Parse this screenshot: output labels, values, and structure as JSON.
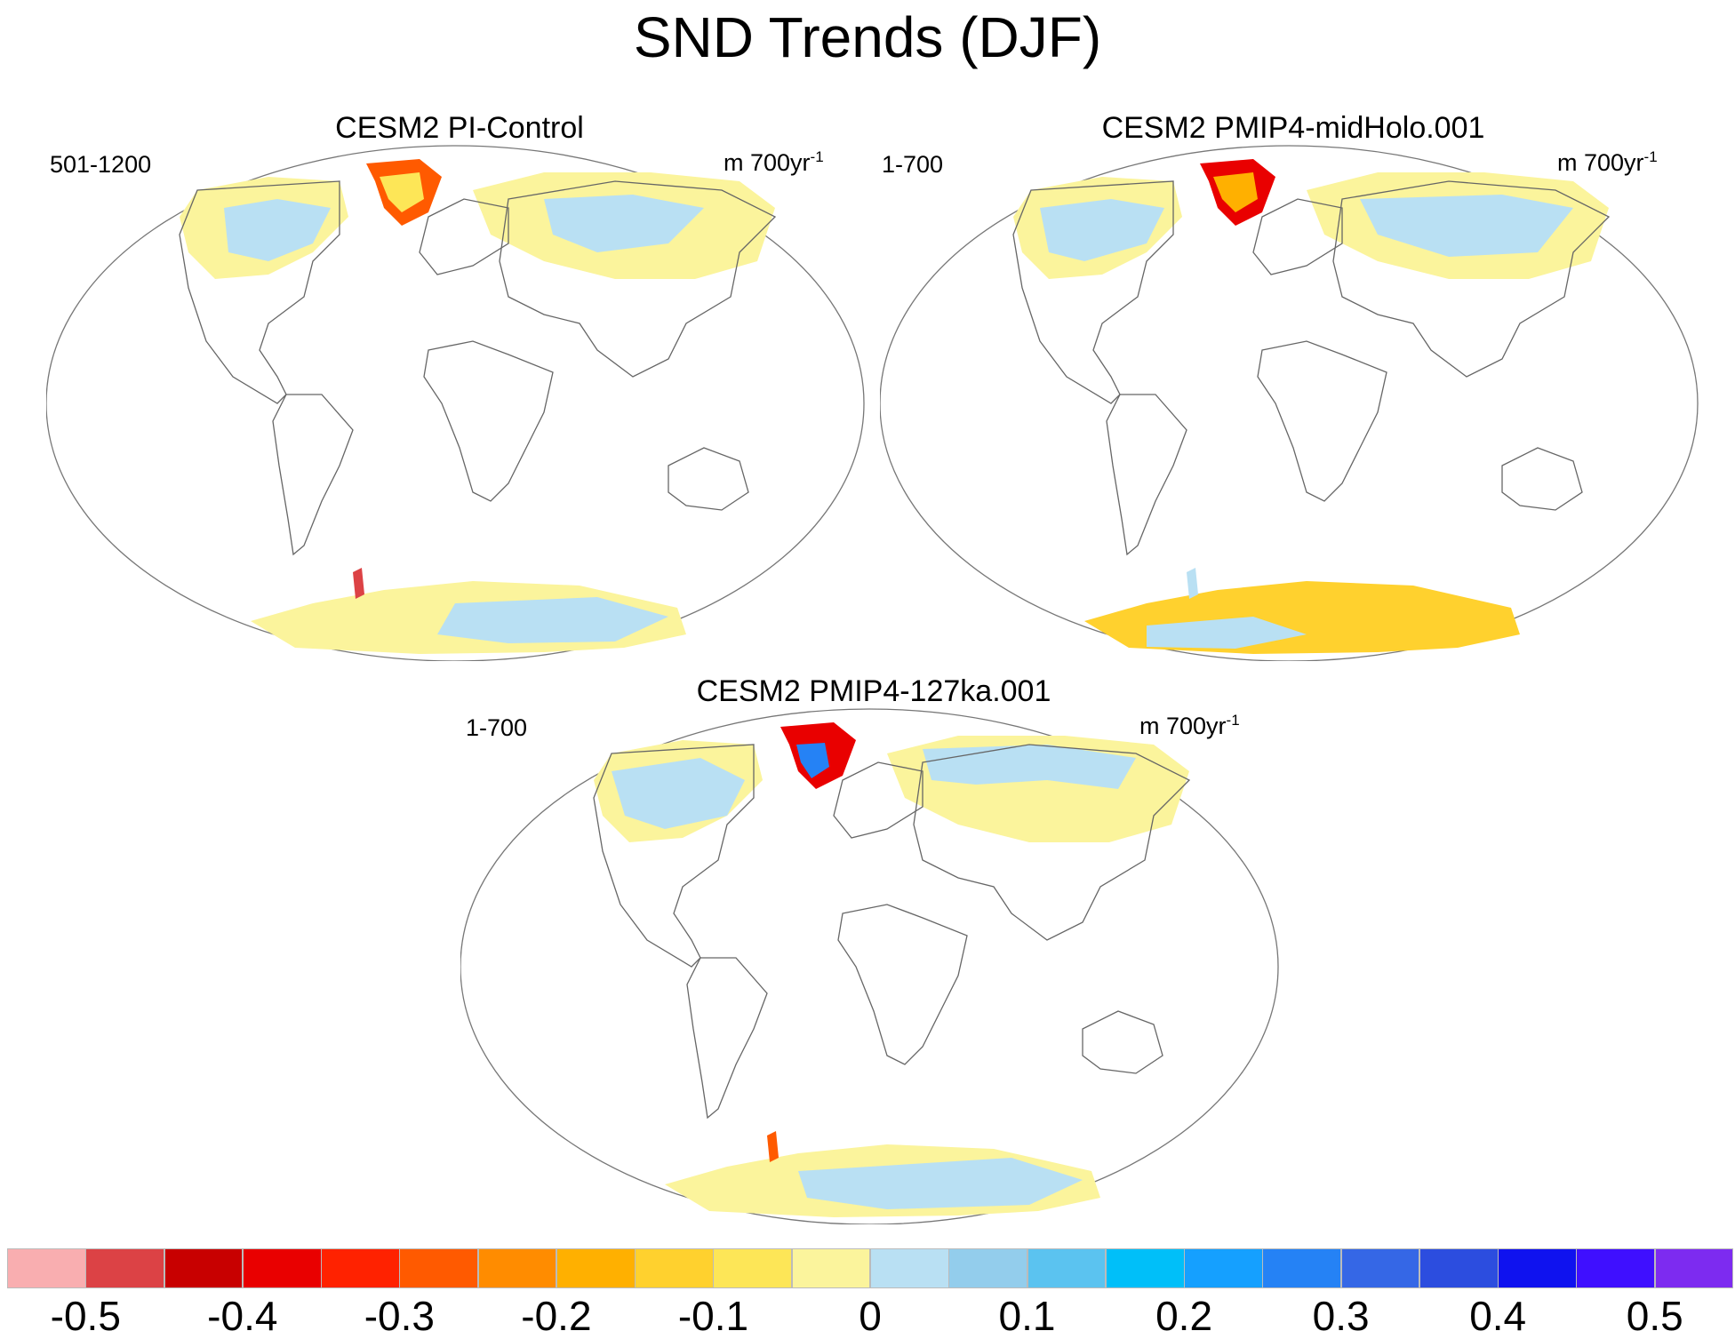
{
  "title": "SND Trends (DJF)",
  "panels": [
    {
      "title": "CESM2 PI-Control",
      "period": "501-1200",
      "units_prefix": "m 700yr",
      "units_sup": "-1"
    },
    {
      "title": "CESM2 PMIP4-midHolo.001",
      "period": "1-700",
      "units_prefix": "m 700yr",
      "units_sup": "-1"
    },
    {
      "title": "CESM2 PMIP4-127ka.001",
      "period": "1-700",
      "units_prefix": "m 700yr",
      "units_sup": "-1"
    }
  ],
  "colorbar": {
    "colors": [
      "#f9aeb0",
      "#dc4245",
      "#c80000",
      "#e90000",
      "#ff2200",
      "#ff5a00",
      "#ff8c00",
      "#ffb000",
      "#ffd12e",
      "#fde657",
      "#fbf49c",
      "#b9e0f3",
      "#93cdec",
      "#5bc3f0",
      "#00bff9",
      "#15a0ff",
      "#2582f5",
      "#3567e6",
      "#2c4ddf",
      "#0f12ef",
      "#3f0fff",
      "#7d2bf0"
    ],
    "labels": [
      "-0.5",
      "-0.4",
      "-0.3",
      "-0.2",
      "-0.1",
      "0",
      "0.1",
      "0.2",
      "0.3",
      "0.4",
      "0.5"
    ]
  }
}
